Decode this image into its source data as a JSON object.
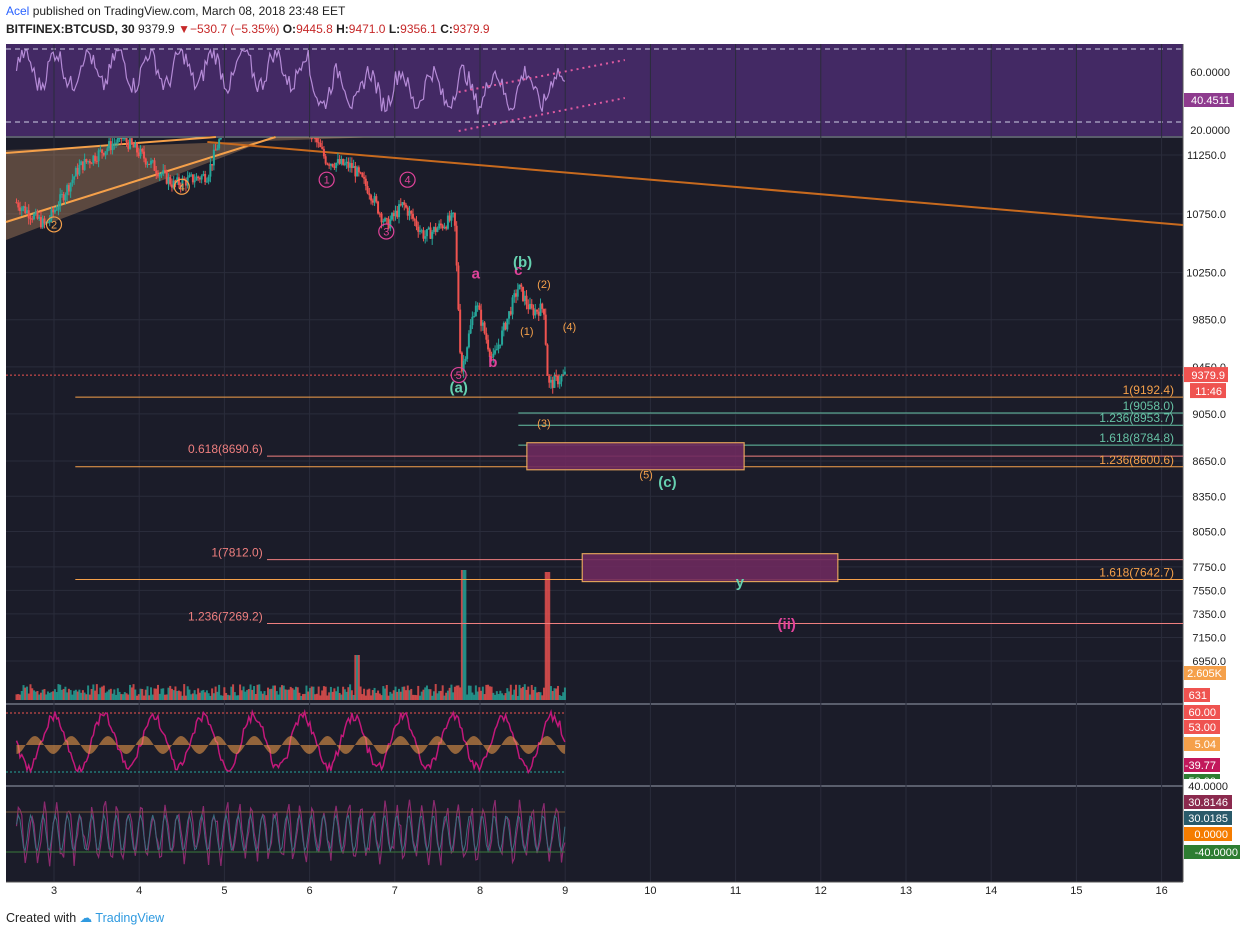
{
  "header": {
    "author": "Acel",
    "published_text": "published on TradingView.com, March 08, 2018 23:48 EET",
    "symbol": "BITFINEX:BTCUSD, 30",
    "last": "9379.9",
    "change": "−530.7 (−5.35%)",
    "o_label": "O:",
    "o_value": "9445.8",
    "h_label": "H:",
    "h_value": "9471.0",
    "l_label": "L:",
    "l_value": "9356.1",
    "c_label": "C:",
    "c_value": "9379.9"
  },
  "footer": {
    "created_with": "Created with",
    "brand": "TradingView"
  },
  "colors": {
    "background": "#1b1c29",
    "grid": "#2a2c3b",
    "up": "#26a69a",
    "down": "#ef5350",
    "rsi_band": "#4a2c6e",
    "fib_orange": "#f5a04a",
    "fib_green": "#66c2a5",
    "fib_red": "#ef7f7f",
    "wave_pink": "#e0439a",
    "wave_orange": "#f5a04a",
    "wave_green": "#66d1b0",
    "trendline": "#c86a1e"
  },
  "chart_data": {
    "type": "candlestick",
    "x_ticks": [
      "3",
      "4",
      "5",
      "6",
      "7",
      "8",
      "9",
      "10",
      "11",
      "12",
      "13",
      "14",
      "15",
      "16"
    ],
    "price_axis": [
      "11250.0",
      "10750.0",
      "10250.0",
      "9850.0",
      "9450.0",
      "9050.0",
      "8650.0",
      "8350.0",
      "8050.0",
      "7750.0",
      "7550.0",
      "7350.0",
      "7150.0",
      "6950.0"
    ],
    "ylim": [
      6800,
      11500
    ],
    "last_price": "9379.9",
    "countdown": "11:46",
    "rsi": {
      "ticks": [
        "60.0000",
        "20.0000"
      ],
      "value": "40.4511"
    },
    "volume": {
      "value": "2.605K",
      "value2": "631"
    },
    "osc1": {
      "labels": [
        "60.00",
        "53.00",
        "5.04",
        "-39.77",
        "-53.00"
      ]
    },
    "osc2": {
      "labels": [
        "40.0000",
        "30.8146",
        "30.0185",
        "0.0000",
        "-40.0000"
      ]
    },
    "fib_levels": [
      {
        "label": "1(9192.4)",
        "price": 9192.4,
        "side": "right",
        "color": "orange"
      },
      {
        "label": "1(9058.0)",
        "price": 9058.0,
        "side": "right",
        "color": "green"
      },
      {
        "label": "1.236(8953.7)",
        "price": 8953.7,
        "side": "right",
        "color": "green"
      },
      {
        "label": "1.618(8784.8)",
        "price": 8784.8,
        "side": "right",
        "color": "green"
      },
      {
        "label": "0.618(8690.6)",
        "price": 8690.6,
        "side": "left",
        "color": "red"
      },
      {
        "label": "1.236(8600.6)",
        "price": 8600.6,
        "side": "right",
        "color": "orange"
      },
      {
        "label": "1(7812.0)",
        "price": 7812.0,
        "side": "left",
        "color": "red"
      },
      {
        "label": "1.618(7642.7)",
        "price": 7642.7,
        "side": "right",
        "color": "orange"
      },
      {
        "label": "1.236(7269.2)",
        "price": 7269.2,
        "side": "left",
        "color": "red"
      }
    ],
    "wave_labels": [
      {
        "text": "2",
        "circled": true,
        "color": "orange",
        "x": 3.0,
        "price": 10660
      },
      {
        "text": "4",
        "circled": true,
        "color": "orange",
        "x": 4.5,
        "price": 10980
      },
      {
        "text": "1",
        "circled": true,
        "color": "pink",
        "x": 6.2,
        "price": 11040
      },
      {
        "text": "4",
        "circled": true,
        "color": "pink",
        "x": 7.15,
        "price": 11040
      },
      {
        "text": "3",
        "circled": true,
        "color": "pink",
        "x": 6.9,
        "price": 10600
      },
      {
        "text": "5",
        "circled": true,
        "color": "pink",
        "x": 7.75,
        "price": 9380
      },
      {
        "text": "(a)",
        "circled": false,
        "color": "green",
        "x": 7.75,
        "price": 9230
      },
      {
        "text": "a",
        "circled": false,
        "color": "pink",
        "x": 7.95,
        "price": 10200
      },
      {
        "text": "b",
        "circled": false,
        "color": "pink",
        "x": 8.15,
        "price": 9450
      },
      {
        "text": "c",
        "circled": false,
        "color": "pink",
        "x": 8.45,
        "price": 10230
      },
      {
        "text": "(b)",
        "circled": false,
        "color": "green",
        "x": 8.5,
        "price": 10300
      },
      {
        "text": "(1)",
        "circled": false,
        "color": "orange",
        "x": 8.55,
        "price": 9720
      },
      {
        "text": "(2)",
        "circled": false,
        "color": "orange",
        "x": 8.75,
        "price": 10120
      },
      {
        "text": "(3)",
        "circled": false,
        "color": "orange",
        "x": 8.75,
        "price": 8940
      },
      {
        "text": "(4)",
        "circled": false,
        "color": "orange",
        "x": 9.05,
        "price": 9760
      },
      {
        "text": "(5)",
        "circled": false,
        "color": "orange",
        "x": 9.95,
        "price": 8500
      },
      {
        "text": "(c)",
        "circled": false,
        "color": "green",
        "x": 10.2,
        "price": 8430
      },
      {
        "text": "y",
        "circled": false,
        "color": "green",
        "x": 11.05,
        "price": 7580
      },
      {
        "text": "(ii)",
        "circled": false,
        "color": "pink",
        "x": 11.6,
        "price": 7220
      }
    ],
    "target_boxes": [
      {
        "x1": 8.55,
        "x2": 11.1,
        "p1": 8805,
        "p2": 8575
      },
      {
        "x1": 9.2,
        "x2": 12.2,
        "p1": 7862,
        "p2": 7625
      }
    ]
  }
}
